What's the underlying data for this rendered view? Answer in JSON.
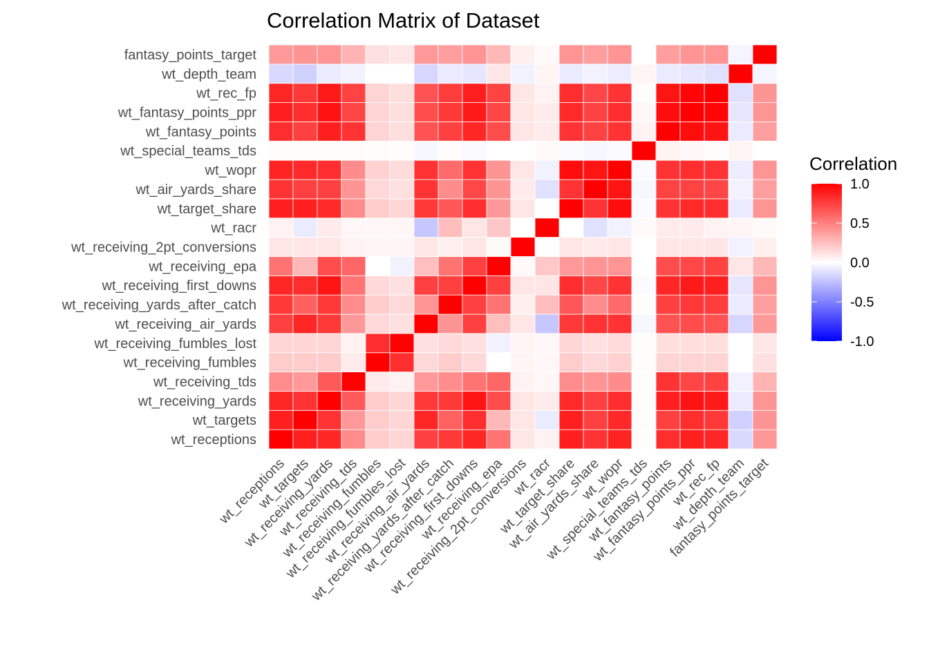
{
  "chart_data": {
    "type": "heatmap",
    "title": "Correlation Matrix of Dataset",
    "xlabel": "",
    "ylabel": "",
    "variables": [
      "wt_receptions",
      "wt_targets",
      "wt_receiving_yards",
      "wt_receiving_tds",
      "wt_receiving_fumbles",
      "wt_receiving_fumbles_lost",
      "wt_receiving_air_yards",
      "wt_receiving_yards_after_catch",
      "wt_receiving_first_downs",
      "wt_receiving_epa",
      "wt_receiving_2pt_conversions",
      "wt_racr",
      "wt_target_share",
      "wt_air_yards_share",
      "wt_wopr",
      "wt_special_teams_tds",
      "wt_fantasy_points",
      "wt_fantasy_points_ppr",
      "wt_rec_fp",
      "wt_depth_team",
      "fantasy_points_target"
    ],
    "matrix": [
      [
        1.0,
        0.88,
        0.85,
        0.45,
        0.2,
        0.16,
        0.75,
        0.78,
        0.85,
        0.55,
        0.1,
        0.05,
        0.88,
        0.8,
        0.86,
        0.01,
        0.82,
        0.88,
        0.85,
        -0.15,
        0.4
      ],
      [
        0.88,
        1.0,
        0.8,
        0.4,
        0.2,
        0.16,
        0.85,
        0.62,
        0.82,
        0.28,
        0.1,
        -0.08,
        0.88,
        0.75,
        0.84,
        0.01,
        0.75,
        0.82,
        0.78,
        -0.18,
        0.42
      ],
      [
        0.85,
        0.8,
        1.0,
        0.65,
        0.2,
        0.16,
        0.78,
        0.78,
        0.92,
        0.7,
        0.1,
        0.08,
        0.84,
        0.75,
        0.82,
        0.01,
        0.88,
        0.93,
        0.9,
        -0.08,
        0.42
      ],
      [
        0.45,
        0.4,
        0.65,
        1.0,
        0.08,
        0.05,
        0.4,
        0.45,
        0.55,
        0.6,
        0.05,
        0.03,
        0.45,
        0.42,
        0.45,
        0.01,
        0.8,
        0.73,
        0.74,
        -0.05,
        0.3
      ],
      [
        0.2,
        0.2,
        0.2,
        0.08,
        1.0,
        0.82,
        0.15,
        0.2,
        0.15,
        0.0,
        0.04,
        0.03,
        0.2,
        0.15,
        0.18,
        0.01,
        0.17,
        0.17,
        0.17,
        0.0,
        0.12
      ],
      [
        0.16,
        0.16,
        0.16,
        0.05,
        0.82,
        1.0,
        0.12,
        0.15,
        0.12,
        -0.05,
        0.04,
        0.03,
        0.16,
        0.12,
        0.14,
        0.01,
        0.13,
        0.13,
        0.13,
        0.0,
        0.1
      ],
      [
        0.75,
        0.85,
        0.78,
        0.4,
        0.15,
        0.12,
        1.0,
        0.42,
        0.75,
        0.25,
        0.1,
        -0.22,
        0.78,
        0.8,
        0.8,
        -0.03,
        0.68,
        0.7,
        0.68,
        -0.16,
        0.4
      ],
      [
        0.78,
        0.62,
        0.78,
        0.45,
        0.2,
        0.15,
        0.42,
        1.0,
        0.75,
        0.55,
        0.06,
        0.26,
        0.66,
        0.45,
        0.58,
        0.01,
        0.75,
        0.78,
        0.76,
        -0.08,
        0.38
      ],
      [
        0.85,
        0.82,
        0.92,
        0.55,
        0.15,
        0.12,
        0.75,
        0.75,
        1.0,
        0.75,
        0.1,
        0.1,
        0.82,
        0.72,
        0.8,
        -0.02,
        0.85,
        0.9,
        0.88,
        -0.1,
        0.42
      ],
      [
        0.55,
        0.28,
        0.7,
        0.6,
        0.0,
        -0.05,
        0.25,
        0.55,
        0.75,
        1.0,
        0.02,
        0.22,
        0.4,
        0.42,
        0.42,
        0.0,
        0.7,
        0.72,
        0.74,
        0.1,
        0.28
      ],
      [
        0.1,
        0.1,
        0.1,
        0.05,
        0.04,
        0.04,
        0.1,
        0.06,
        0.1,
        0.02,
        1.0,
        0.0,
        0.1,
        0.08,
        0.1,
        0.0,
        0.1,
        0.1,
        0.1,
        -0.05,
        0.06
      ],
      [
        0.05,
        -0.08,
        0.08,
        0.03,
        0.03,
        0.03,
        -0.22,
        0.26,
        0.1,
        0.22,
        0.0,
        1.0,
        0.0,
        -0.12,
        -0.05,
        0.02,
        0.08,
        0.08,
        0.05,
        0.04,
        0.02
      ],
      [
        0.88,
        0.88,
        0.84,
        0.45,
        0.2,
        0.16,
        0.78,
        0.66,
        0.82,
        0.4,
        0.1,
        0.0,
        1.0,
        0.8,
        0.95,
        -0.02,
        0.8,
        0.84,
        0.82,
        -0.08,
        0.42
      ],
      [
        0.8,
        0.75,
        0.75,
        0.42,
        0.15,
        0.12,
        0.8,
        0.45,
        0.72,
        0.42,
        0.08,
        -0.12,
        0.8,
        1.0,
        0.92,
        -0.03,
        0.74,
        0.74,
        0.72,
        -0.05,
        0.38
      ],
      [
        0.86,
        0.84,
        0.82,
        0.45,
        0.18,
        0.14,
        0.8,
        0.58,
        0.8,
        0.42,
        0.1,
        -0.05,
        0.95,
        0.92,
        1.0,
        -0.02,
        0.8,
        0.82,
        0.8,
        -0.07,
        0.42
      ],
      [
        0.01,
        0.01,
        0.01,
        0.01,
        0.01,
        0.01,
        -0.03,
        0.01,
        -0.02,
        0.0,
        0.0,
        0.02,
        -0.02,
        -0.03,
        -0.02,
        1.0,
        0.05,
        0.03,
        0.01,
        0.04,
        0.0
      ],
      [
        0.82,
        0.75,
        0.88,
        0.8,
        0.17,
        0.13,
        0.68,
        0.75,
        0.85,
        0.7,
        0.1,
        0.08,
        0.8,
        0.74,
        0.8,
        0.05,
        1.0,
        0.95,
        0.92,
        -0.08,
        0.38
      ],
      [
        0.88,
        0.82,
        0.93,
        0.73,
        0.17,
        0.13,
        0.7,
        0.78,
        0.9,
        0.72,
        0.1,
        0.08,
        0.84,
        0.74,
        0.82,
        0.03,
        0.95,
        1.0,
        0.98,
        -0.1,
        0.42
      ],
      [
        0.85,
        0.78,
        0.9,
        0.74,
        0.17,
        0.13,
        0.68,
        0.76,
        0.88,
        0.74,
        0.1,
        0.05,
        0.82,
        0.72,
        0.8,
        0.01,
        0.92,
        0.98,
        1.0,
        -0.12,
        0.42
      ],
      [
        -0.15,
        -0.18,
        -0.08,
        -0.05,
        0.0,
        0.0,
        -0.16,
        -0.08,
        -0.1,
        0.1,
        -0.05,
        0.04,
        -0.08,
        -0.05,
        -0.07,
        0.04,
        -0.08,
        -0.1,
        -0.12,
        1.0,
        -0.04
      ],
      [
        0.4,
        0.42,
        0.42,
        0.3,
        0.12,
        0.1,
        0.4,
        0.38,
        0.42,
        0.28,
        0.06,
        0.02,
        0.42,
        0.38,
        0.42,
        0.0,
        0.38,
        0.42,
        0.42,
        -0.04,
        1.0
      ]
    ],
    "color_scale": {
      "low": "#0000ff",
      "mid": "#ffffff",
      "high": "#ff0000",
      "limits": [
        -1,
        1
      ]
    },
    "legend": {
      "title": "Correlation",
      "position": "right",
      "ticks": [
        "1.0",
        "0.5",
        "0.0",
        "-0.5",
        "-1.0"
      ]
    },
    "grid": false
  }
}
